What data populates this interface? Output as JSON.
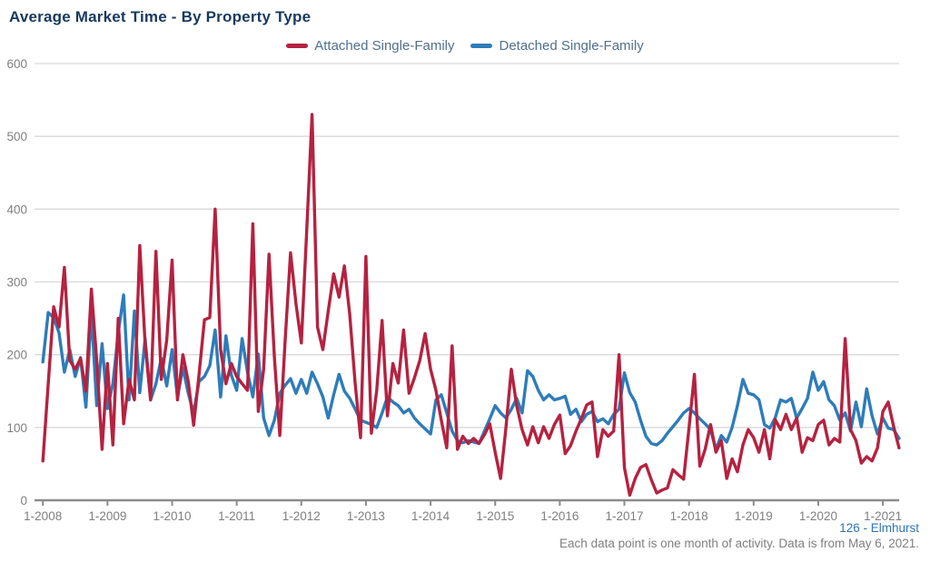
{
  "page": {
    "title": "Average Market Time - By Property Type"
  },
  "footer": {
    "source": "126 - Elmhurst",
    "note": "Each data point is one month of activity. Data is from May 6, 2021."
  },
  "chart_data": {
    "type": "line",
    "title": "Average Market Time - By Property Type",
    "xlabel": "",
    "ylabel": "",
    "ylim": [
      0,
      600
    ],
    "yticks": [
      0,
      100,
      200,
      300,
      400,
      500,
      600
    ],
    "grid": true,
    "legend_position": "top-center",
    "x_unit": "month",
    "x_range": "1-2008 to 4-2021",
    "points_per_tick": 12,
    "x_tick_labels": [
      "1-2008",
      "1-2009",
      "1-2010",
      "1-2011",
      "1-2012",
      "1-2013",
      "1-2014",
      "1-2015",
      "1-2016",
      "1-2017",
      "1-2018",
      "1-2019",
      "1-2020",
      "1-2021"
    ],
    "colors": {
      "attached": "#b52240",
      "detached": "#2e7cb9",
      "gridline": "#d9d9d9",
      "axis": "#8c8c8c",
      "tick_label": "#7f7f7f",
      "title": "#17395d"
    },
    "series": [
      {
        "name": "Attached Single-Family",
        "color": "#b52240",
        "values": [
          54,
          160,
          266,
          238,
          320,
          192,
          180,
          195,
          150,
          290,
          192,
          70,
          188,
          76,
          250,
          105,
          166,
          138,
          350,
          215,
          138,
          342,
          166,
          220,
          330,
          138,
          200,
          163,
          103,
          172,
          248,
          251,
          400,
          207,
          160,
          188,
          170,
          160,
          151,
          380,
          122,
          180,
          338,
          197,
          89,
          220,
          340,
          270,
          216,
          370,
          530,
          238,
          207,
          260,
          311,
          279,
          322,
          255,
          160,
          86,
          335,
          92,
          151,
          247,
          116,
          188,
          161,
          234,
          147,
          168,
          192,
          229,
          180,
          151,
          110,
          72,
          212,
          70,
          88,
          78,
          85,
          78,
          90,
          105,
          66,
          30,
          100,
          180,
          130,
          97,
          76,
          101,
          79,
          101,
          85,
          104,
          117,
          64,
          75,
          95,
          112,
          131,
          135,
          60,
          97,
          88,
          95,
          200,
          45,
          7,
          30,
          45,
          49,
          28,
          10,
          14,
          17,
          42,
          35,
          29,
          100,
          173,
          47,
          70,
          104,
          66,
          82,
          30,
          57,
          39,
          76,
          97,
          86,
          66,
          97,
          57,
          111,
          97,
          118,
          97,
          113,
          66,
          86,
          82,
          104,
          110,
          76,
          85,
          80,
          222,
          97,
          82,
          51,
          60,
          54,
          72,
          122,
          135,
          101,
          72
        ]
      },
      {
        "name": "Detached Single-Family",
        "color": "#2e7cb9",
        "values": [
          190,
          258,
          251,
          230,
          176,
          207,
          170,
          196,
          128,
          260,
          130,
          215,
          126,
          160,
          230,
          282,
          138,
          260,
          148,
          222,
          138,
          160,
          195,
          157,
          207,
          142,
          182,
          147,
          120,
          163,
          170,
          185,
          234,
          142,
          226,
          172,
          151,
          222,
          176,
          142,
          201,
          113,
          89,
          110,
          147,
          158,
          167,
          147,
          166,
          147,
          176,
          160,
          142,
          113,
          145,
          173,
          150,
          140,
          125,
          110,
          107,
          104,
          100,
          120,
          142,
          135,
          130,
          120,
          125,
          113,
          105,
          98,
          91,
          138,
          145,
          120,
          95,
          82,
          79,
          82,
          80,
          78,
          95,
          112,
          130,
          120,
          113,
          125,
          140,
          120,
          178,
          170,
          151,
          138,
          145,
          138,
          140,
          143,
          118,
          125,
          108,
          118,
          122,
          108,
          112,
          105,
          118,
          125,
          175,
          148,
          135,
          110,
          88,
          78,
          76,
          82,
          92,
          101,
          110,
          120,
          126,
          120,
          112,
          105,
          97,
          70,
          89,
          80,
          100,
          130,
          166,
          147,
          145,
          138,
          104,
          99,
          113,
          138,
          135,
          140,
          113,
          126,
          140,
          176,
          151,
          163,
          138,
          130,
          110,
          120,
          95,
          135,
          101,
          153,
          116,
          91,
          113,
          99,
          97,
          85
        ]
      }
    ]
  }
}
